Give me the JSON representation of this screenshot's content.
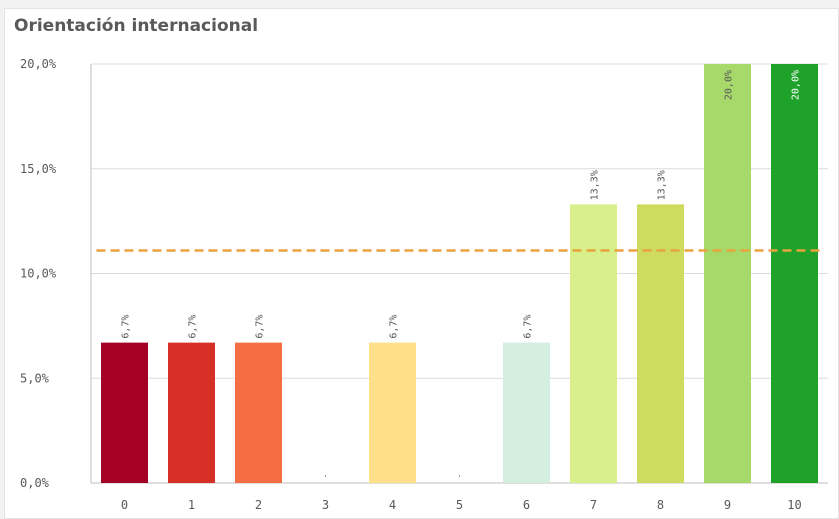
{
  "panel": {
    "title": "Orientación internacional"
  },
  "chart_data": {
    "type": "bar",
    "title": "Orientación internacional",
    "xlabel": "",
    "ylabel": "",
    "categories": [
      "0",
      "1",
      "2",
      "3",
      "4",
      "5",
      "6",
      "7",
      "8",
      "9",
      "10"
    ],
    "values": [
      6.7,
      6.7,
      6.7,
      0,
      6.7,
      0,
      6.7,
      13.3,
      13.3,
      20.0,
      20.0
    ],
    "value_labels": [
      "6,7%",
      "6,7%",
      "6,7%",
      "",
      "6,7%",
      "",
      "6,7%",
      "13,3%",
      "13,3%",
      "20,0%",
      "20,0%"
    ],
    "colors": [
      "#a50026",
      "#d73027",
      "#f46d43",
      "#fdae61",
      "#fee08b",
      "#ffffbf",
      "#d4efdf",
      "#d9ef8b",
      "#cfdb5f",
      "#a6d96a",
      "#1fa22a"
    ],
    "label_colors": [
      "#595959",
      "#595959",
      "#595959",
      "#595959",
      "#595959",
      "#595959",
      "#595959",
      "#595959",
      "#595959",
      "#595959",
      "#ffffff"
    ],
    "ylim": [
      0,
      20
    ],
    "y_ticks": [
      0,
      5,
      10,
      15,
      20
    ],
    "y_tick_labels": [
      "0,0%",
      "5,0%",
      "10,0%",
      "15,0%",
      "20,0%"
    ],
    "reference_line": {
      "value": 11.1,
      "color": "#e8a33d",
      "style": "dashed"
    },
    "grid": true,
    "legend": "none"
  }
}
